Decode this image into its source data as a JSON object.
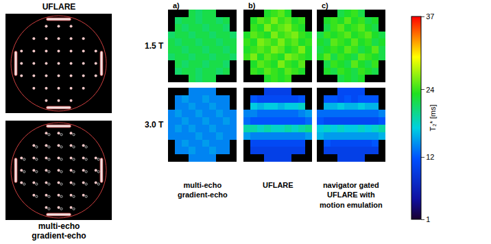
{
  "phantom_labels": {
    "top": [
      "UFLARE"
    ],
    "bottom": [
      "multi-echo",
      "gradient-echo"
    ]
  },
  "row_labels": [
    "1.5 T",
    "3.0 T"
  ],
  "panel_letters": [
    "a)",
    "b)",
    "c)"
  ],
  "column_labels": [
    [
      "multi-echo",
      "gradient-echo"
    ],
    [
      "UFLARE"
    ],
    [
      "navigator gated",
      "UFLARE with",
      "motion emulation"
    ]
  ],
  "colorbar": {
    "title": "T₂* [ms]",
    "range": [
      1,
      37
    ],
    "ticks": [
      1,
      12,
      24,
      37
    ]
  },
  "chart_data": [
    {
      "type": "heatmap",
      "row": 0,
      "column": 0,
      "tick_labels": false,
      "cells": [
        [
          null,
          null,
          null,
          22,
          21,
          22,
          22,
          null,
          null,
          null
        ],
        [
          null,
          21,
          22,
          22,
          21,
          22,
          22,
          21,
          22,
          null
        ],
        [
          null,
          22,
          21,
          22,
          22,
          21,
          22,
          22,
          21,
          null
        ],
        [
          21,
          22,
          22,
          21,
          22,
          22,
          21,
          22,
          22,
          21
        ],
        [
          22,
          21,
          22,
          22,
          21,
          22,
          22,
          21,
          22,
          22
        ],
        [
          22,
          22,
          21,
          22,
          22,
          21,
          22,
          22,
          21,
          22
        ],
        [
          21,
          22,
          22,
          21,
          22,
          22,
          21,
          22,
          22,
          21
        ],
        [
          null,
          22,
          21,
          22,
          22,
          21,
          22,
          22,
          21,
          null
        ],
        [
          null,
          21,
          22,
          22,
          21,
          22,
          22,
          21,
          22,
          null
        ],
        [
          null,
          null,
          null,
          22,
          21,
          22,
          22,
          null,
          null,
          null
        ]
      ]
    },
    {
      "type": "heatmap",
      "row": 0,
      "column": 1,
      "tick_labels": false,
      "cells": [
        [
          null,
          null,
          null,
          23,
          24,
          25,
          23,
          null,
          null,
          null
        ],
        [
          null,
          23,
          25,
          24,
          26,
          24,
          25,
          23,
          24,
          null
        ],
        [
          null,
          24,
          23,
          26,
          24,
          25,
          26,
          24,
          23,
          null
        ],
        [
          23,
          25,
          24,
          23,
          26,
          24,
          25,
          26,
          24,
          23
        ],
        [
          24,
          23,
          26,
          25,
          24,
          26,
          24,
          25,
          23,
          24
        ],
        [
          23,
          24,
          25,
          24,
          26,
          25,
          23,
          24,
          26,
          23
        ],
        [
          24,
          26,
          23,
          25,
          24,
          23,
          26,
          25,
          24,
          23
        ],
        [
          null,
          23,
          25,
          24,
          23,
          26,
          24,
          23,
          25,
          null
        ],
        [
          null,
          24,
          23,
          25,
          24,
          23,
          25,
          24,
          23,
          null
        ],
        [
          null,
          null,
          null,
          23,
          24,
          23,
          24,
          null,
          null,
          null
        ]
      ]
    },
    {
      "type": "heatmap",
      "row": 0,
      "column": 2,
      "tick_labels": false,
      "cells": [
        [
          null,
          null,
          null,
          22,
          23,
          24,
          22,
          null,
          null,
          null
        ],
        [
          null,
          23,
          24,
          23,
          25,
          23,
          24,
          22,
          23,
          null
        ],
        [
          null,
          22,
          24,
          25,
          23,
          24,
          25,
          23,
          22,
          null
        ],
        [
          22,
          24,
          23,
          24,
          25,
          23,
          24,
          25,
          23,
          22
        ],
        [
          23,
          22,
          25,
          24,
          23,
          25,
          23,
          24,
          22,
          23
        ],
        [
          22,
          23,
          24,
          23,
          25,
          24,
          22,
          23,
          25,
          22
        ],
        [
          23,
          25,
          22,
          24,
          23,
          22,
          25,
          24,
          23,
          22
        ],
        [
          null,
          22,
          24,
          23,
          22,
          25,
          23,
          22,
          24,
          null
        ],
        [
          null,
          23,
          22,
          24,
          23,
          22,
          24,
          23,
          22,
          null
        ],
        [
          null,
          null,
          null,
          22,
          23,
          22,
          23,
          null,
          null,
          null
        ]
      ]
    },
    {
      "type": "heatmap",
      "row": 1,
      "column": 0,
      "tick_labels": false,
      "cells": [
        [
          null,
          null,
          null,
          14,
          14,
          14,
          14,
          null,
          null,
          null
        ],
        [
          null,
          14,
          15,
          14,
          14,
          15,
          14,
          14,
          14,
          null
        ],
        [
          null,
          14,
          14,
          15,
          14,
          14,
          15,
          14,
          14,
          null
        ],
        [
          14,
          15,
          14,
          14,
          15,
          14,
          14,
          15,
          14,
          14
        ],
        [
          14,
          14,
          15,
          14,
          14,
          15,
          14,
          14,
          15,
          14
        ],
        [
          14,
          15,
          14,
          15,
          14,
          14,
          15,
          14,
          14,
          14
        ],
        [
          14,
          14,
          14,
          14,
          15,
          14,
          14,
          15,
          14,
          14
        ],
        [
          null,
          14,
          15,
          14,
          14,
          15,
          14,
          14,
          14,
          null
        ],
        [
          null,
          14,
          14,
          15,
          14,
          14,
          15,
          14,
          14,
          null
        ],
        [
          null,
          null,
          null,
          14,
          14,
          14,
          14,
          null,
          null,
          null
        ]
      ]
    },
    {
      "type": "heatmap",
      "row": 1,
      "column": 1,
      "tick_labels": false,
      "cells": [
        [
          null,
          null,
          null,
          10,
          10,
          10,
          10,
          null,
          null,
          null
        ],
        [
          null,
          12,
          11,
          11,
          11,
          11,
          11,
          11,
          12,
          null
        ],
        [
          null,
          17,
          16,
          17,
          17,
          16,
          17,
          17,
          18,
          null
        ],
        [
          14,
          14,
          13,
          13,
          13,
          13,
          13,
          13,
          14,
          15
        ],
        [
          13,
          12,
          12,
          12,
          12,
          12,
          12,
          12,
          12,
          13
        ],
        [
          19,
          19,
          18,
          19,
          18,
          18,
          19,
          18,
          19,
          20
        ],
        [
          15,
          14,
          14,
          14,
          14,
          14,
          14,
          14,
          14,
          15
        ],
        [
          null,
          11,
          11,
          11,
          11,
          11,
          11,
          11,
          11,
          null
        ],
        [
          null,
          10,
          10,
          10,
          10,
          10,
          10,
          10,
          10,
          null
        ],
        [
          null,
          null,
          null,
          10,
          10,
          10,
          10,
          null,
          null,
          null
        ]
      ]
    },
    {
      "type": "heatmap",
      "row": 1,
      "column": 2,
      "tick_labels": false,
      "cells": [
        [
          null,
          null,
          null,
          11,
          11,
          11,
          11,
          null,
          null,
          null
        ],
        [
          null,
          12,
          12,
          11,
          12,
          11,
          12,
          12,
          12,
          null
        ],
        [
          null,
          16,
          16,
          17,
          16,
          16,
          17,
          16,
          16,
          null
        ],
        [
          13,
          13,
          13,
          13,
          13,
          13,
          13,
          13,
          13,
          14
        ],
        [
          12,
          11,
          11,
          11,
          11,
          11,
          11,
          11,
          11,
          12
        ],
        [
          17,
          18,
          17,
          18,
          17,
          17,
          18,
          17,
          18,
          19
        ],
        [
          16,
          15,
          15,
          15,
          15,
          15,
          15,
          15,
          15,
          16
        ],
        [
          null,
          12,
          11,
          11,
          11,
          11,
          11,
          11,
          12,
          null
        ],
        [
          null,
          10,
          10,
          10,
          10,
          10,
          10,
          10,
          10,
          null
        ],
        [
          null,
          null,
          null,
          10,
          10,
          10,
          10,
          null,
          null,
          null
        ]
      ]
    }
  ]
}
